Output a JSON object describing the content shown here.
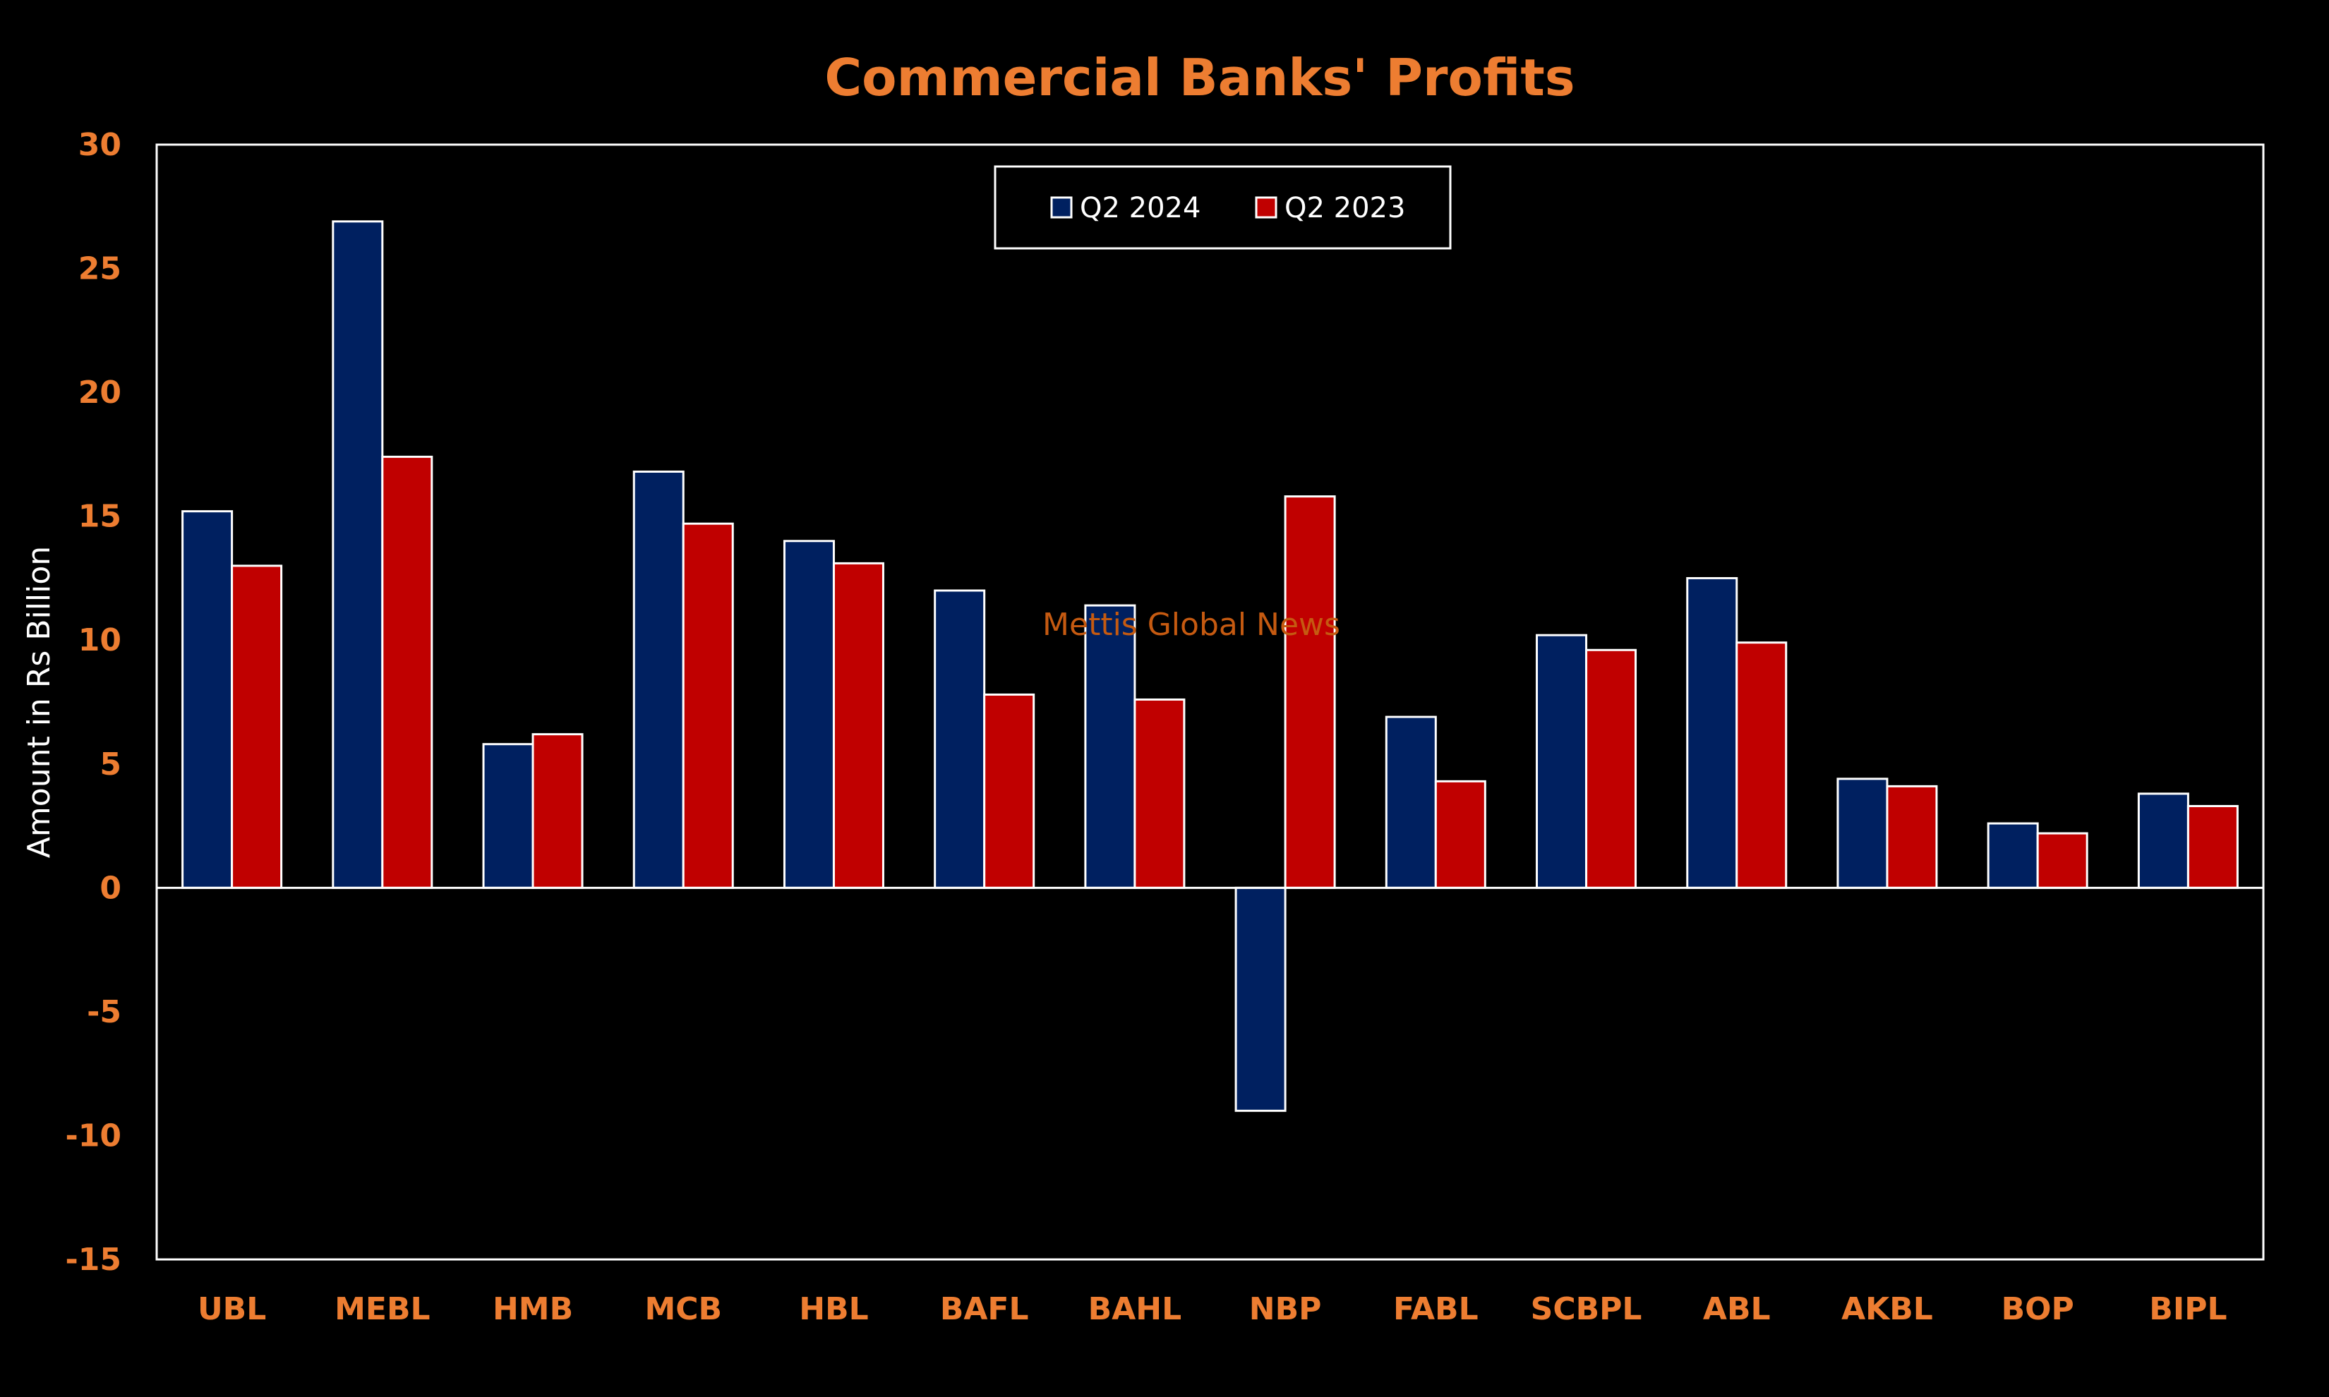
{
  "chart_data": {
    "type": "bar",
    "title": "Commercial Banks' Profits",
    "ylabel": "Amount in Rs Billion",
    "xlabel": "",
    "ylim": [
      -15,
      30
    ],
    "yticks": [
      30,
      25,
      20,
      15,
      10,
      5,
      0,
      -5,
      -10,
      -15
    ],
    "categories": [
      "UBL",
      "MEBL",
      "HMB",
      "MCB",
      "HBL",
      "BAFL",
      "BAHL",
      "NBP",
      "FABL",
      "SCBPL",
      "ABL",
      "AKBL",
      "BOP",
      "BIPL"
    ],
    "series": [
      {
        "name": "Q2 2024",
        "color": "#002060",
        "values": [
          15.2,
          26.9,
          5.8,
          16.8,
          14.0,
          12.0,
          11.4,
          -9.0,
          6.9,
          10.2,
          12.5,
          4.4,
          2.6,
          3.8
        ]
      },
      {
        "name": "Q2 2023",
        "color": "#C00000",
        "values": [
          13.0,
          17.4,
          6.2,
          14.7,
          13.1,
          7.8,
          7.6,
          15.8,
          4.3,
          9.6,
          9.9,
          4.1,
          2.2,
          3.3
        ]
      }
    ],
    "legend_position": "top-center",
    "grid": false,
    "watermark": "Mettis Global News",
    "colors": {
      "background": "#000000",
      "accent": "#ED7D31",
      "axis": "#FFFFFF",
      "watermark": "#C55A11"
    }
  }
}
